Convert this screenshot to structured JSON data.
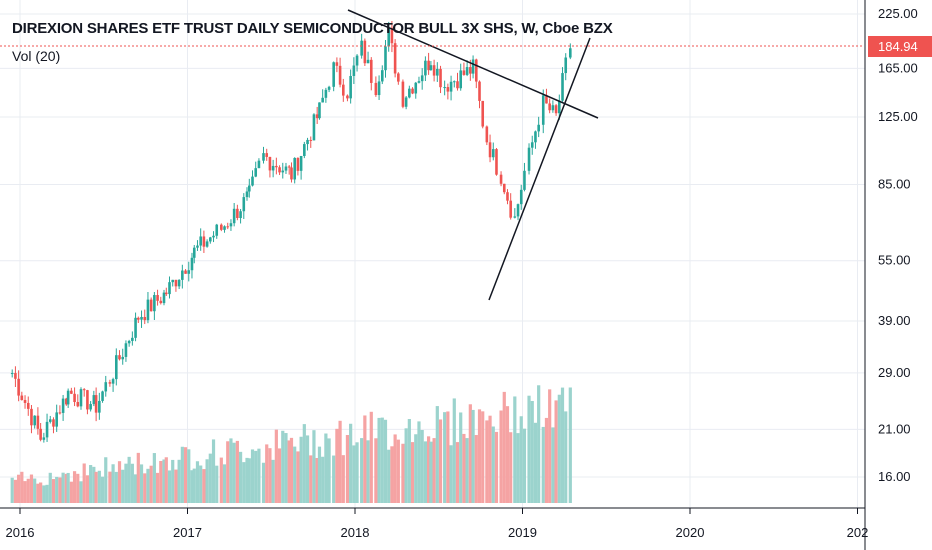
{
  "header": {
    "title": "DIREXION SHARES ETF TRUST DAILY SEMICONDUCTOR BULL 3X SHS, W, Cboe BZX",
    "indicator": "Vol (20)"
  },
  "colors": {
    "up": "#26a69a",
    "down": "#ef5350",
    "vol_up": "#9bd3cd",
    "vol_down": "#f5a3a3",
    "last_price": "#ef5350",
    "trendline": "#131722",
    "grid": "#e9ecf2"
  },
  "chart_data": {
    "type": "candlestick",
    "timeframe": "W",
    "y_scale": "log",
    "y_ticks": [
      "225.00",
      "165.00",
      "125.00",
      "85.00",
      "55.00",
      "39.00",
      "29.00",
      "21.00",
      "16.00"
    ],
    "x_ticks": [
      "2016",
      "2017",
      "2018",
      "2019",
      "2020",
      "202"
    ],
    "last_price": "184.94",
    "approx_weekly_close_path": [
      {
        "date": "2015-12",
        "close": 29
      },
      {
        "date": "2016-02",
        "close": 20
      },
      {
        "date": "2016-04",
        "close": 26
      },
      {
        "date": "2016-06",
        "close": 24
      },
      {
        "date": "2016-07",
        "close": 28
      },
      {
        "date": "2016-09",
        "close": 40
      },
      {
        "date": "2016-11",
        "close": 46
      },
      {
        "date": "2017-01",
        "close": 58
      },
      {
        "date": "2017-03",
        "close": 66
      },
      {
        "date": "2017-05",
        "close": 80
      },
      {
        "date": "2017-06",
        "close": 100
      },
      {
        "date": "2017-08",
        "close": 90
      },
      {
        "date": "2017-10",
        "close": 130
      },
      {
        "date": "2017-11",
        "close": 165
      },
      {
        "date": "2017-12",
        "close": 145
      },
      {
        "date": "2018-01",
        "close": 185
      },
      {
        "date": "2018-02",
        "close": 150
      },
      {
        "date": "2018-03",
        "close": 200
      },
      {
        "date": "2018-04",
        "close": 140
      },
      {
        "date": "2018-06",
        "close": 175
      },
      {
        "date": "2018-07",
        "close": 150
      },
      {
        "date": "2018-09",
        "close": 165
      },
      {
        "date": "2018-10",
        "close": 110
      },
      {
        "date": "2018-11",
        "close": 90
      },
      {
        "date": "2018-12",
        "close": 70
      },
      {
        "date": "2019-01",
        "close": 100
      },
      {
        "date": "2019-02",
        "close": 135
      },
      {
        "date": "2019-03",
        "close": 125
      },
      {
        "date": "2019-04",
        "close": 185
      }
    ]
  }
}
